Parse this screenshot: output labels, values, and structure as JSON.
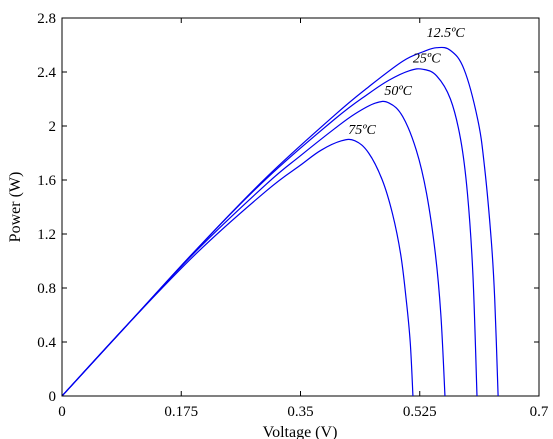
{
  "chart_data": {
    "type": "line",
    "xlabel": "Voltage (V)",
    "ylabel": "Power (W)",
    "xlim": [
      0,
      0.7
    ],
    "ylim": [
      0,
      2.8
    ],
    "xticks": [
      0,
      0.175,
      0.35,
      0.525,
      0.7
    ],
    "xtick_labels": [
      "0",
      "0.175",
      "0.35",
      "0.525",
      "0.7"
    ],
    "yticks": [
      0,
      0.4,
      0.8,
      1.2,
      1.6,
      2.0,
      2.4,
      2.8
    ],
    "ytick_labels": [
      "0",
      "0.4",
      "0.8",
      "1.2",
      "1.6",
      "2",
      "2.4",
      "2.8"
    ],
    "grid": false,
    "line_color": "#0000ee",
    "series": [
      {
        "name": "12.5ºC",
        "x": [
          0,
          0.1,
          0.2,
          0.3,
          0.4,
          0.45,
          0.5,
          0.53,
          0.55,
          0.57,
          0.59,
          0.61,
          0.62,
          0.63,
          0.635,
          0.64
        ],
        "y": [
          0,
          0.55,
          1.1,
          1.62,
          2.08,
          2.29,
          2.48,
          2.55,
          2.58,
          2.56,
          2.42,
          2.05,
          1.7,
          1.15,
          0.72,
          0
        ]
      },
      {
        "name": "25ºC",
        "x": [
          0,
          0.1,
          0.2,
          0.3,
          0.4,
          0.45,
          0.48,
          0.51,
          0.53,
          0.55,
          0.57,
          0.585,
          0.595,
          0.603,
          0.609
        ],
        "y": [
          0,
          0.55,
          1.1,
          1.61,
          2.05,
          2.24,
          2.34,
          2.41,
          2.42,
          2.37,
          2.2,
          1.9,
          1.5,
          0.9,
          0
        ]
      },
      {
        "name": "50ºC",
        "x": [
          0,
          0.1,
          0.2,
          0.3,
          0.35,
          0.4,
          0.43,
          0.46,
          0.48,
          0.5,
          0.52,
          0.535,
          0.548,
          0.556,
          0.562
        ],
        "y": [
          0,
          0.55,
          1.09,
          1.57,
          1.78,
          1.98,
          2.09,
          2.17,
          2.17,
          2.07,
          1.82,
          1.5,
          1.05,
          0.6,
          0
        ]
      },
      {
        "name": "75ºC",
        "x": [
          0,
          0.1,
          0.2,
          0.3,
          0.35,
          0.38,
          0.41,
          0.43,
          0.45,
          0.47,
          0.485,
          0.497,
          0.505,
          0.511,
          0.515
        ],
        "y": [
          0,
          0.55,
          1.07,
          1.52,
          1.71,
          1.82,
          1.89,
          1.89,
          1.8,
          1.6,
          1.35,
          1.05,
          0.72,
          0.4,
          0
        ]
      }
    ],
    "curve_labels": [
      {
        "text": "12.5ºC",
        "x": 0.535,
        "y": 2.66
      },
      {
        "text": "25ºC",
        "x": 0.515,
        "y": 2.47
      },
      {
        "text": "50ºC",
        "x": 0.473,
        "y": 2.23
      },
      {
        "text": "75ºC",
        "x": 0.42,
        "y": 1.94
      }
    ]
  }
}
